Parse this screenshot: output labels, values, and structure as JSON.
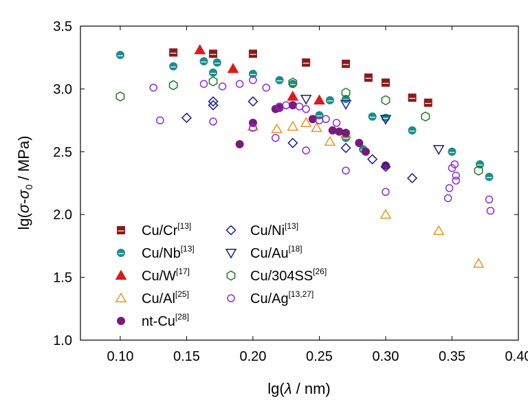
{
  "chart_data": {
    "type": "scatter",
    "xlabel": {
      "prefix": "lg(",
      "symbol": "λ",
      "suffix": " / nm)"
    },
    "ylabel": {
      "prefix": "lg(",
      "sigma": "σ",
      "minus": "-",
      "sigma0": "σ",
      "sub": "0",
      "suffix": " / MPa)"
    },
    "xlim": [
      0.07,
      0.4
    ],
    "ylim": [
      1.0,
      3.5
    ],
    "x_ticks": [
      0.1,
      0.15,
      0.2,
      0.25,
      0.3,
      0.35,
      0.4
    ],
    "x_tick_labels": [
      "0.10",
      "0.15",
      "0.20",
      "0.25",
      "0.30",
      "0.35",
      "0.40"
    ],
    "y_ticks": [
      1.0,
      1.5,
      2.0,
      2.5,
      3.0,
      3.5
    ],
    "y_tick_labels": [
      "1.0",
      "1.5",
      "2.0",
      "2.5",
      "3.0",
      "3.5"
    ],
    "grid": false,
    "legend_position": "bottom-left",
    "series": [
      {
        "name": "Cu/Cr",
        "ref": "[13]",
        "marker": "square-filled",
        "color": "#8B1A1A",
        "points": [
          [
            0.14,
            3.29
          ],
          [
            0.17,
            3.28
          ],
          [
            0.2,
            3.28
          ],
          [
            0.24,
            3.21
          ],
          [
            0.27,
            3.2
          ],
          [
            0.287,
            3.09
          ],
          [
            0.3,
            3.05
          ],
          [
            0.32,
            2.93
          ],
          [
            0.332,
            2.89
          ]
        ]
      },
      {
        "name": "Cu/Nb",
        "ref": "[13]",
        "marker": "circle-halffilled",
        "color": "#1E8C8C",
        "points": [
          [
            0.1,
            3.27
          ],
          [
            0.14,
            3.18
          ],
          [
            0.163,
            3.22
          ],
          [
            0.17,
            3.13
          ],
          [
            0.173,
            3.21
          ],
          [
            0.2,
            3.12
          ],
          [
            0.22,
            3.07
          ],
          [
            0.23,
            3.04
          ],
          [
            0.258,
            2.91
          ],
          [
            0.25,
            2.79
          ],
          [
            0.27,
            2.61
          ],
          [
            0.283,
            2.52
          ],
          [
            0.29,
            2.78
          ],
          [
            0.3,
            2.77
          ],
          [
            0.32,
            2.67
          ],
          [
            0.35,
            2.5
          ],
          [
            0.371,
            2.4
          ],
          [
            0.378,
            2.3
          ],
          [
            0.27,
            2.92
          ]
        ]
      },
      {
        "name": "Cu/W",
        "ref": "[17]",
        "marker": "triangle-up-filled",
        "color": "#E01818",
        "points": [
          [
            0.16,
            3.31
          ],
          [
            0.185,
            3.16
          ],
          [
            0.23,
            2.94
          ],
          [
            0.25,
            2.91
          ]
        ]
      },
      {
        "name": "Cu/Al",
        "ref": "[25]",
        "marker": "triangle-up-open",
        "color": "#E8961E",
        "points": [
          [
            0.2,
            2.7
          ],
          [
            0.218,
            2.68
          ],
          [
            0.23,
            2.7
          ],
          [
            0.24,
            2.73
          ],
          [
            0.248,
            2.69
          ],
          [
            0.258,
            2.58
          ],
          [
            0.27,
            2.64
          ],
          [
            0.3,
            2.0
          ],
          [
            0.34,
            1.87
          ],
          [
            0.37,
            1.61
          ]
        ]
      },
      {
        "name": "nt-Cu",
        "ref": "[28]",
        "marker": "circle-filled",
        "color": "#7A1A7A",
        "points": [
          [
            0.19,
            2.56
          ],
          [
            0.2,
            2.73
          ],
          [
            0.217,
            2.84
          ],
          [
            0.22,
            2.85
          ],
          [
            0.23,
            2.87
          ],
          [
            0.245,
            2.76
          ],
          [
            0.26,
            2.67
          ],
          [
            0.265,
            2.66
          ],
          [
            0.27,
            2.65
          ],
          [
            0.28,
            2.57
          ],
          [
            0.285,
            2.5
          ],
          [
            0.3,
            2.39
          ]
        ]
      },
      {
        "name": "Cu/Ni",
        "ref": "[13]",
        "marker": "diamond-open",
        "color": "#1A1A8C",
        "points": [
          [
            0.15,
            2.77
          ],
          [
            0.17,
            2.9
          ],
          [
            0.17,
            2.87
          ],
          [
            0.2,
            2.9
          ],
          [
            0.23,
            2.57
          ],
          [
            0.27,
            2.53
          ],
          [
            0.29,
            2.44
          ],
          [
            0.3,
            2.38
          ],
          [
            0.32,
            2.29
          ]
        ]
      },
      {
        "name": "Cu/Au",
        "ref": "[18]",
        "marker": "triangle-down-open",
        "color": "#1A1A8C",
        "points": [
          [
            0.24,
            2.92
          ],
          [
            0.27,
            2.88
          ],
          [
            0.3,
            2.76
          ],
          [
            0.34,
            2.52
          ]
        ]
      },
      {
        "name": "Cu/304SS",
        "ref": "[26]",
        "marker": "hexagon-open",
        "color": "#1E7A1E",
        "points": [
          [
            0.1,
            2.94
          ],
          [
            0.14,
            3.03
          ],
          [
            0.17,
            3.06
          ],
          [
            0.23,
            3.05
          ],
          [
            0.27,
            2.97
          ],
          [
            0.3,
            2.91
          ],
          [
            0.33,
            2.78
          ],
          [
            0.37,
            2.35
          ]
        ]
      },
      {
        "name": "Cu/Ag",
        "ref": "[13,27]",
        "marker": "circle-open",
        "color": "#8A2BE2",
        "points": [
          [
            0.125,
            3.01
          ],
          [
            0.13,
            2.75
          ],
          [
            0.163,
            3.04
          ],
          [
            0.17,
            2.74
          ],
          [
            0.177,
            3.02
          ],
          [
            0.19,
            3.04
          ],
          [
            0.2,
            3.07
          ],
          [
            0.2,
            2.69
          ],
          [
            0.21,
            3.01
          ],
          [
            0.217,
            2.61
          ],
          [
            0.22,
            2.86
          ],
          [
            0.225,
            2.87
          ],
          [
            0.235,
            2.86
          ],
          [
            0.24,
            2.84
          ],
          [
            0.24,
            2.51
          ],
          [
            0.25,
            2.75
          ],
          [
            0.255,
            2.76
          ],
          [
            0.263,
            2.73
          ],
          [
            0.27,
            2.35
          ],
          [
            0.3,
            2.18
          ],
          [
            0.347,
            2.13
          ],
          [
            0.348,
            2.21
          ],
          [
            0.35,
            2.37
          ],
          [
            0.352,
            2.4
          ],
          [
            0.353,
            2.27
          ],
          [
            0.353,
            2.31
          ],
          [
            0.378,
            2.12
          ],
          [
            0.379,
            2.03
          ]
        ]
      }
    ]
  }
}
